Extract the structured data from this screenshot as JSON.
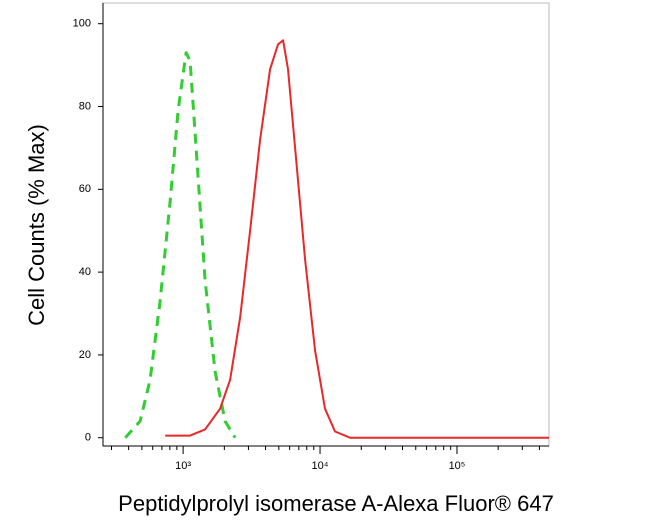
{
  "chart_data": {
    "type": "line",
    "xlabel": "Peptidylprolyl isomerase A-Alexa Fluor® 647",
    "ylabel": "Cell Counts (% Max)",
    "xscale": "log",
    "xlim": [
      260,
      470000
    ],
    "xticks": [
      {
        "value": 1000,
        "label": "10³"
      },
      {
        "value": 10000,
        "label": "10⁴"
      },
      {
        "value": 100000,
        "label": "10⁵"
      }
    ],
    "xminorticks": [
      300,
      400,
      500,
      600,
      700,
      800,
      900,
      2000,
      3000,
      4000,
      5000,
      6000,
      7000,
      8000,
      9000,
      20000,
      30000,
      40000,
      50000,
      60000,
      70000,
      80000,
      90000,
      200000,
      300000,
      400000
    ],
    "ylim": [
      -2,
      105
    ],
    "yticks": [
      0,
      20,
      40,
      60,
      80,
      100
    ],
    "series": [
      {
        "color": "#33cc33",
        "dash": true,
        "x": [
          378,
          485,
          574,
          679,
          804,
          920,
          1052,
          1125,
          1244,
          1448,
          1713,
          2026,
          2397
        ],
        "values": [
          0,
          4,
          14,
          33,
          57,
          79,
          93,
          91,
          70,
          38,
          16,
          4,
          0
        ]
      },
      {
        "color": "#e8282b",
        "dash": false,
        "x": [
          740,
          1125,
          1448,
          1862,
          2203,
          2606,
          3083,
          3648,
          4315,
          4935,
          5370,
          5836,
          6572,
          7780,
          9200,
          10870,
          12860,
          16560,
          470000
        ],
        "values": [
          0.5,
          0.5,
          2,
          7,
          14,
          29,
          50,
          72,
          89,
          95,
          96,
          89,
          70,
          43,
          21,
          7,
          1.5,
          0,
          0
        ]
      }
    ]
  }
}
